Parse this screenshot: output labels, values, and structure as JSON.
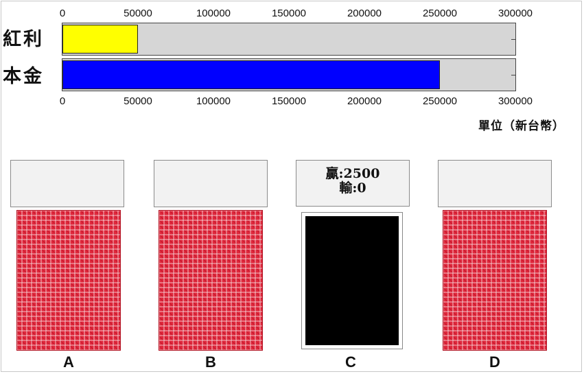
{
  "axis": {
    "ticks": [
      "0",
      "50000",
      "100000",
      "150000",
      "200000",
      "250000",
      "300000"
    ],
    "max": 300000
  },
  "bars": [
    {
      "label": "紅利",
      "value": 50000,
      "color": "#ffff00"
    },
    {
      "label": "本金",
      "value": 250000,
      "color": "#0000ff"
    }
  ],
  "unit_label": "單位（新台幣）",
  "decks": [
    {
      "letter": "A",
      "revealed": false,
      "win": "",
      "loss": ""
    },
    {
      "letter": "B",
      "revealed": false,
      "win": "",
      "loss": ""
    },
    {
      "letter": "C",
      "revealed": true,
      "win": "贏:2500",
      "loss": "輸:0"
    },
    {
      "letter": "D",
      "revealed": false,
      "win": "",
      "loss": ""
    }
  ]
}
